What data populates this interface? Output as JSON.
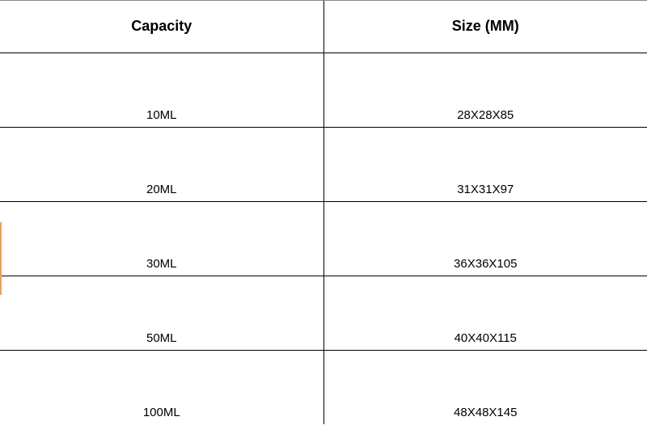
{
  "table": {
    "type": "table",
    "columns": [
      "Capacity",
      "Size (MM)"
    ],
    "rows": [
      [
        "10ML",
        "28X28X85"
      ],
      [
        "20ML",
        "31X31X97"
      ],
      [
        "30ML",
        "36X36X105"
      ],
      [
        "50ML",
        "40X40X115"
      ],
      [
        "100ML",
        "48X48X145"
      ]
    ],
    "styling": {
      "background_color": "#ffffff",
      "border_color": "#000000",
      "top_border_color": "#888888",
      "header_font_size": 18,
      "header_font_weight": "bold",
      "cell_font_size": 15,
      "cell_font_weight": "normal",
      "text_color": "#000000",
      "header_row_height": 64,
      "data_row_height": 92,
      "column_count": 2,
      "cell_text_align": "center",
      "cell_vertical_align": "bottom",
      "accent_color": "#f5a04a"
    }
  }
}
